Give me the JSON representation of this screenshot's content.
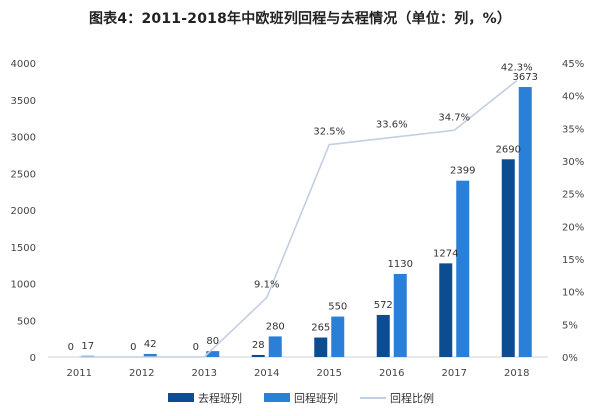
{
  "chart_data": {
    "type": "bar",
    "title": "图表4：2011-2018年中欧班列回程与去程情况（单位：列，%）",
    "categories": [
      "2011",
      "2012",
      "2013",
      "2014",
      "2015",
      "2016",
      "2017",
      "2018"
    ],
    "series": [
      {
        "name": "去程班列",
        "type": "bar",
        "axis": "left",
        "color": "#0e4c92",
        "values": [
          0,
          0,
          0,
          28,
          265,
          572,
          1274,
          2690
        ]
      },
      {
        "name": "回程班列",
        "type": "bar",
        "axis": "left",
        "color": "#2a7fd9",
        "values": [
          17,
          42,
          80,
          280,
          550,
          1130,
          2399,
          3673
        ]
      },
      {
        "name": "回程比例",
        "type": "line",
        "axis": "right",
        "color": "#c3cfe2",
        "values": [
          0,
          0,
          0,
          9.1,
          32.5,
          33.6,
          34.7,
          42.3
        ],
        "labels": [
          "",
          "",
          "",
          "9.1%",
          "32.5%",
          "33.6%",
          "34.7%",
          "42.3%"
        ]
      }
    ],
    "y_left": {
      "min": 0,
      "max": 4000,
      "step": 500
    },
    "y_right": {
      "min": 0,
      "max": 45,
      "step": 5,
      "suffix": "%"
    },
    "grid": false,
    "legend_position": "bottom"
  }
}
